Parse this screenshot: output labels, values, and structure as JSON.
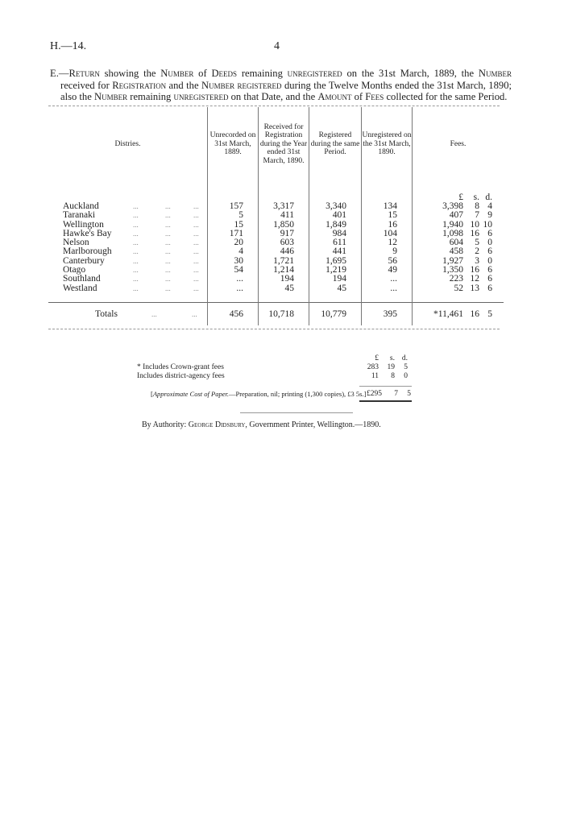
{
  "header": {
    "ref": "H.—14.",
    "page": "4"
  },
  "caption": {
    "prefix": "E.—",
    "title_parts": [
      "Return",
      "showing the",
      "Number",
      "of",
      "Deeds",
      "remaining",
      "unregistered",
      "on the 31st March, 1889, the",
      "Number",
      "received for",
      "Registration",
      "and the",
      "Number registered",
      "during the Twelve Months ended the 31st March, 1890; also the",
      "Number",
      "remaining",
      "unregistered",
      "on that Date, and the",
      "Amount",
      "of",
      "Fees",
      "collected for the same Period."
    ]
  },
  "table": {
    "columns": [
      "Distries.",
      "Unrecorded on 31st March, 1889.",
      "Received for Registration during the Year ended 31st March, 1890.",
      "Registered during the same Period.",
      "Unregistered on the 31st March, 1890.",
      "Fees."
    ],
    "fee_units": [
      "£",
      "s.",
      "d."
    ],
    "rows": [
      {
        "district": "Auckland",
        "unrecorded": "157",
        "received": "3,317",
        "registered": "3,340",
        "unregistered": "134",
        "fees": [
          "3,398",
          "8",
          "4"
        ]
      },
      {
        "district": "Taranaki",
        "unrecorded": "5",
        "received": "411",
        "registered": "401",
        "unregistered": "15",
        "fees": [
          "407",
          "7",
          "9"
        ]
      },
      {
        "district": "Wellington",
        "unrecorded": "15",
        "received": "1,850",
        "registered": "1,849",
        "unregistered": "16",
        "fees": [
          "1,940",
          "10",
          "10"
        ]
      },
      {
        "district": "Hawke's Bay",
        "unrecorded": "171",
        "received": "917",
        "registered": "984",
        "unregistered": "104",
        "fees": [
          "1,098",
          "16",
          "6"
        ]
      },
      {
        "district": "Nelson",
        "unrecorded": "20",
        "received": "603",
        "registered": "611",
        "unregistered": "12",
        "fees": [
          "604",
          "5",
          "0"
        ]
      },
      {
        "district": "Marlborough",
        "unrecorded": "4",
        "received": "446",
        "registered": "441",
        "unregistered": "9",
        "fees": [
          "458",
          "2",
          "6"
        ]
      },
      {
        "district": "Canterbury",
        "unrecorded": "30",
        "received": "1,721",
        "registered": "1,695",
        "unregistered": "56",
        "fees": [
          "1,927",
          "3",
          "0"
        ]
      },
      {
        "district": "Otago",
        "unrecorded": "54",
        "received": "1,214",
        "registered": "1,219",
        "unregistered": "49",
        "fees": [
          "1,350",
          "16",
          "6"
        ]
      },
      {
        "district": "Southland",
        "unrecorded": "...",
        "received": "194",
        "registered": "194",
        "unregistered": "...",
        "fees": [
          "223",
          "12",
          "6"
        ]
      },
      {
        "district": "Westland",
        "unrecorded": "...",
        "received": "45",
        "registered": "45",
        "unregistered": "...",
        "fees": [
          "52",
          "13",
          "6"
        ]
      }
    ],
    "totals": {
      "label": "Totals",
      "unrecorded": "456",
      "received": "10,718",
      "registered": "10,779",
      "unregistered": "395",
      "fees": [
        "*11,461",
        "16",
        "5"
      ]
    }
  },
  "footnote": {
    "units": [
      "£",
      "s.",
      "d."
    ],
    "lines": [
      {
        "label": "* Includes Crown-grant fees",
        "values": [
          "283",
          "19",
          "5"
        ]
      },
      {
        "label": "Includes district-agency fees",
        "values": [
          "11",
          "8",
          "0"
        ]
      }
    ],
    "total": [
      "£295",
      "7",
      "5"
    ]
  },
  "cost_note": {
    "italic": "Approximate Cost of Paper.",
    "text": "—Preparation, nil; printing (1,300 copies), £3 5s.]",
    "open": "["
  },
  "authority": {
    "prefix": "By Authority:",
    "printer": "George Didsbury",
    "suffix": ", Government Printer, Wellington.—1890."
  }
}
